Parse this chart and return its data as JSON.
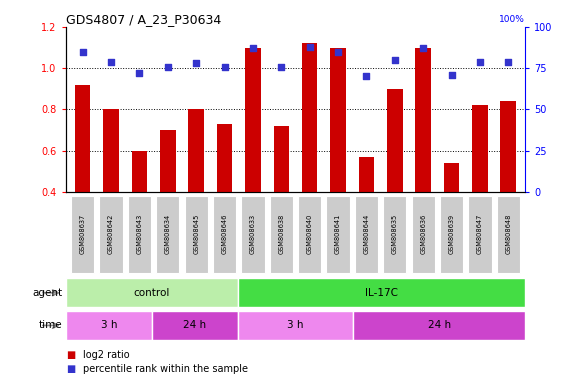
{
  "title": "GDS4807 / A_23_P30634",
  "samples": [
    "GSM808637",
    "GSM808642",
    "GSM808643",
    "GSM808634",
    "GSM808645",
    "GSM808646",
    "GSM808633",
    "GSM808638",
    "GSM808640",
    "GSM808641",
    "GSM808644",
    "GSM808635",
    "GSM808636",
    "GSM808639",
    "GSM808647",
    "GSM808648"
  ],
  "log2_ratio": [
    0.92,
    0.8,
    0.6,
    0.7,
    0.8,
    0.73,
    1.1,
    0.72,
    1.12,
    1.1,
    0.57,
    0.9,
    1.1,
    0.54,
    0.82,
    0.84
  ],
  "percentile": [
    85,
    79,
    72,
    76,
    78,
    76,
    87,
    76,
    88,
    85,
    70,
    80,
    87,
    71,
    79,
    79
  ],
  "bar_color": "#cc0000",
  "dot_color": "#3333cc",
  "ylim_left": [
    0.4,
    1.2
  ],
  "ylim_right": [
    0,
    100
  ],
  "yticks_left": [
    0.4,
    0.6,
    0.8,
    1.0,
    1.2
  ],
  "yticks_right": [
    0,
    25,
    50,
    75,
    100
  ],
  "agent_groups": [
    {
      "label": "control",
      "start": 0,
      "end": 6,
      "color": "#bbeeaa"
    },
    {
      "label": "IL-17C",
      "start": 6,
      "end": 16,
      "color": "#44dd44"
    }
  ],
  "time_groups": [
    {
      "label": "3 h",
      "start": 0,
      "end": 3,
      "color": "#ee88ee"
    },
    {
      "label": "24 h",
      "start": 3,
      "end": 6,
      "color": "#cc44cc"
    },
    {
      "label": "3 h",
      "start": 6,
      "end": 10,
      "color": "#ee88ee"
    },
    {
      "label": "24 h",
      "start": 10,
      "end": 16,
      "color": "#cc44cc"
    }
  ],
  "legend_red_label": "log2 ratio",
  "legend_blue_label": "percentile rank within the sample",
  "background_color": "#ffffff",
  "dotted_lines": [
    0.6,
    0.8,
    1.0
  ],
  "bar_width": 0.55,
  "sample_box_color": "#cccccc",
  "agent_label": "agent",
  "time_label": "time"
}
